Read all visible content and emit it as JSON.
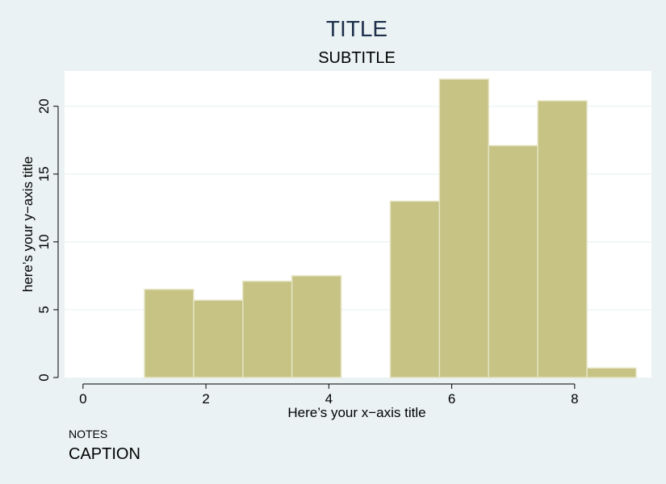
{
  "colors": {
    "background": "#eaf2f3",
    "plot_area": "#ffffff",
    "bar_fill": "#c6c385",
    "bar_stroke": "#e6e4c4",
    "grid": "#eaf2f3",
    "title": "#1e2f4b",
    "text": "#000000"
  },
  "chart_data": {
    "type": "bar",
    "title": "TITLE",
    "subtitle": "SUBTITLE",
    "xlabel": "Here’s your x−axis title",
    "ylabel": "here’s your y−axis title",
    "notes": "NOTES",
    "caption": "CAPTION",
    "xlim": [
      -0.3,
      9.25
    ],
    "ylim": [
      0,
      22.6
    ],
    "xticks": [
      0,
      2,
      4,
      6,
      8
    ],
    "yticks": [
      0,
      5,
      10,
      15,
      20
    ],
    "grid": true,
    "legend": "none",
    "bins": [
      {
        "x0": 1.0,
        "x1": 1.8,
        "value": 6.5
      },
      {
        "x0": 1.8,
        "x1": 2.6,
        "value": 5.7
      },
      {
        "x0": 2.6,
        "x1": 3.4,
        "value": 7.1
      },
      {
        "x0": 3.4,
        "x1": 4.2,
        "value": 7.5
      },
      {
        "x0": 5.0,
        "x1": 5.8,
        "value": 13.0
      },
      {
        "x0": 5.8,
        "x1": 6.6,
        "value": 22.0
      },
      {
        "x0": 6.6,
        "x1": 7.4,
        "value": 17.1
      },
      {
        "x0": 7.4,
        "x1": 8.2,
        "value": 20.4
      },
      {
        "x0": 8.2,
        "x1": 9.0,
        "value": 0.7
      }
    ]
  }
}
